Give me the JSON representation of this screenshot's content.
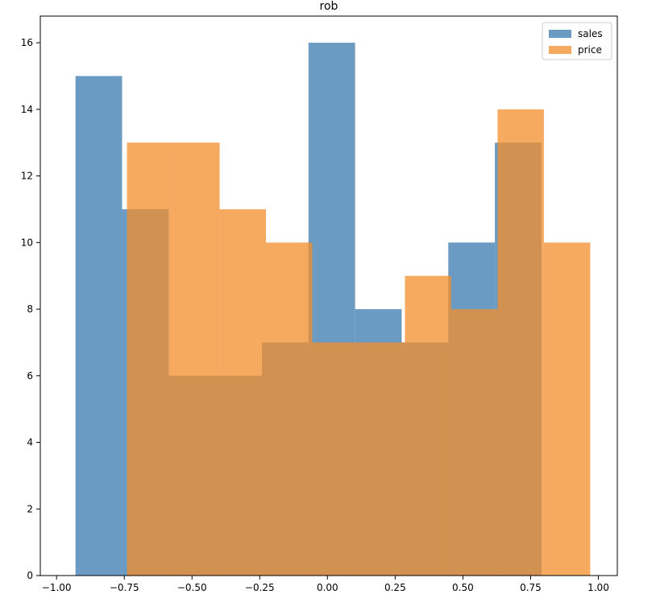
{
  "chart_data": {
    "type": "histogram",
    "title": "rob",
    "xlabel": "",
    "ylabel": "",
    "xlim": [
      -1.06,
      1.07
    ],
    "ylim": [
      0,
      16.8
    ],
    "xticks": [
      -1.0,
      -0.75,
      -0.5,
      -0.25,
      0.0,
      0.25,
      0.5,
      0.75,
      1.0
    ],
    "xtick_labels": [
      "−1.00",
      "−0.75",
      "−0.50",
      "−0.25",
      "0.00",
      "0.25",
      "0.50",
      "0.75",
      "1.00"
    ],
    "yticks": [
      0,
      2,
      4,
      6,
      8,
      10,
      12,
      14,
      16
    ],
    "ytick_labels": [
      "0",
      "2",
      "4",
      "6",
      "8",
      "10",
      "12",
      "14",
      "16"
    ],
    "grid": false,
    "legend_position": "top-right",
    "series": [
      {
        "name": "sales",
        "color": "#4682b4",
        "opacity": 0.8,
        "bin_edges": [
          -0.93,
          -0.758,
          -0.586,
          -0.414,
          -0.242,
          -0.07,
          0.102,
          0.274,
          0.446,
          0.618,
          0.79
        ],
        "counts": [
          15,
          11,
          6,
          6,
          7,
          16,
          8,
          7,
          10,
          13
        ]
      },
      {
        "name": "price",
        "color": "#f28e2b",
        "opacity": 0.75,
        "bin_edges": [
          -0.74,
          -0.569,
          -0.398,
          -0.227,
          -0.056,
          0.115,
          0.286,
          0.457,
          0.628,
          0.799,
          0.97
        ],
        "counts": [
          13,
          13,
          11,
          10,
          7,
          7,
          9,
          8,
          14,
          10
        ]
      }
    ]
  }
}
